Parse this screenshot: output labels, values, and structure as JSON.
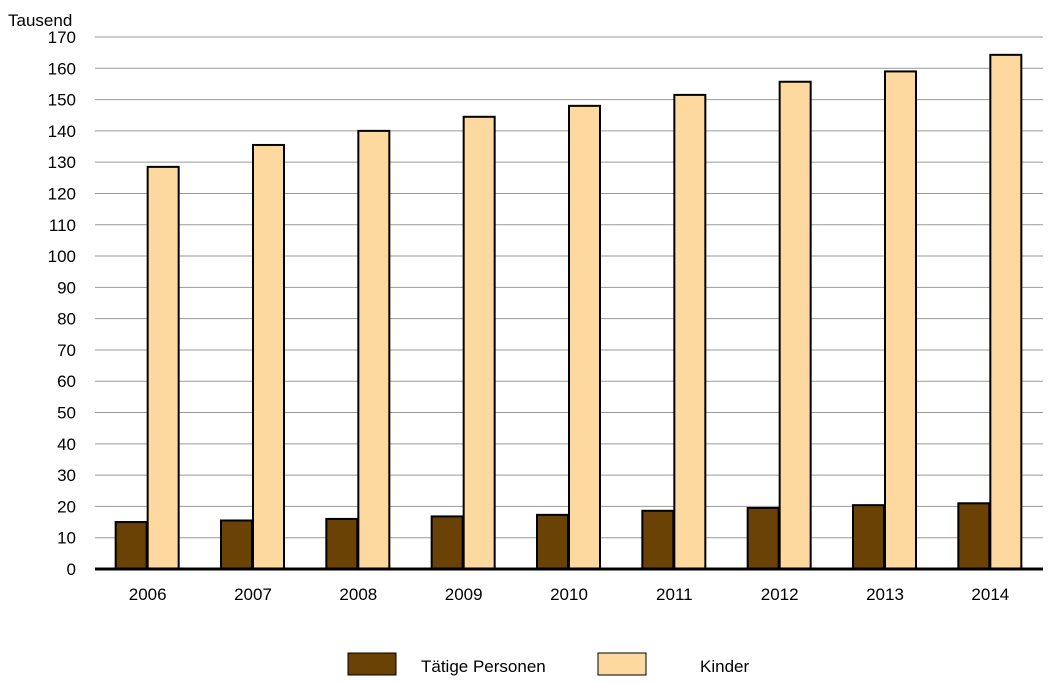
{
  "chart_data": {
    "type": "bar",
    "unit_label": "Tausend",
    "categories": [
      "2006",
      "2007",
      "2008",
      "2009",
      "2010",
      "2011",
      "2012",
      "2013",
      "2014"
    ],
    "series": [
      {
        "name": "Tätige Personen",
        "color": "#6b4205",
        "values": [
          15,
          15.5,
          16,
          16.8,
          17.3,
          18.6,
          19.5,
          20.4,
          21
        ]
      },
      {
        "name": "Kinder",
        "color": "#fdd9a0",
        "values": [
          128.5,
          135.5,
          140,
          144.5,
          148,
          151.5,
          155.7,
          159,
          164.3
        ]
      }
    ],
    "ylim": [
      0,
      170
    ],
    "yticks": [
      0,
      10,
      20,
      30,
      40,
      50,
      60,
      70,
      80,
      90,
      100,
      110,
      120,
      130,
      140,
      150,
      160,
      170
    ],
    "grid": true,
    "legend_position": "bottom"
  }
}
